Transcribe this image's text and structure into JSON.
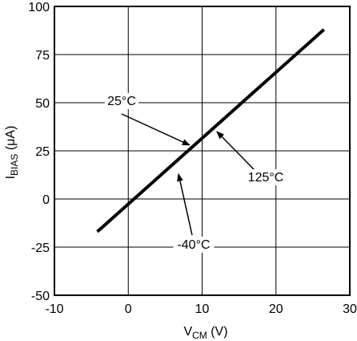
{
  "chart_data": {
    "type": "line",
    "xlabel": {
      "main": "V",
      "sub": "CM",
      "unit": " (V)"
    },
    "ylabel": {
      "main": "I",
      "sub": "BIAS",
      "unit": " (μA)"
    },
    "xlim": [
      -10,
      30
    ],
    "ylim": [
      -50,
      100
    ],
    "x_ticks": [
      -10,
      0,
      10,
      20,
      30
    ],
    "y_ticks": [
      -50,
      -25,
      0,
      25,
      50,
      75,
      100
    ],
    "x_tick_labels": [
      "-10",
      "0",
      "10",
      "20",
      "30"
    ],
    "y_tick_labels": [
      "-50",
      "-25",
      "0",
      "25",
      "50",
      "75",
      "100"
    ],
    "grid": true,
    "series": [
      {
        "x": [
          -4.2,
          26.5
        ],
        "y": [
          -17,
          88
        ]
      }
    ],
    "annotations": [
      {
        "text": "25°C",
        "target_x": 8.3,
        "target_y": 28
      },
      {
        "text": "125°C",
        "target_x": 12,
        "target_y": 35
      },
      {
        "text": "-40°C",
        "target_x": 6.8,
        "target_y": 13
      }
    ],
    "colors": {
      "line": "#000000",
      "grid": "#000000",
      "background": "#ffffff"
    }
  }
}
